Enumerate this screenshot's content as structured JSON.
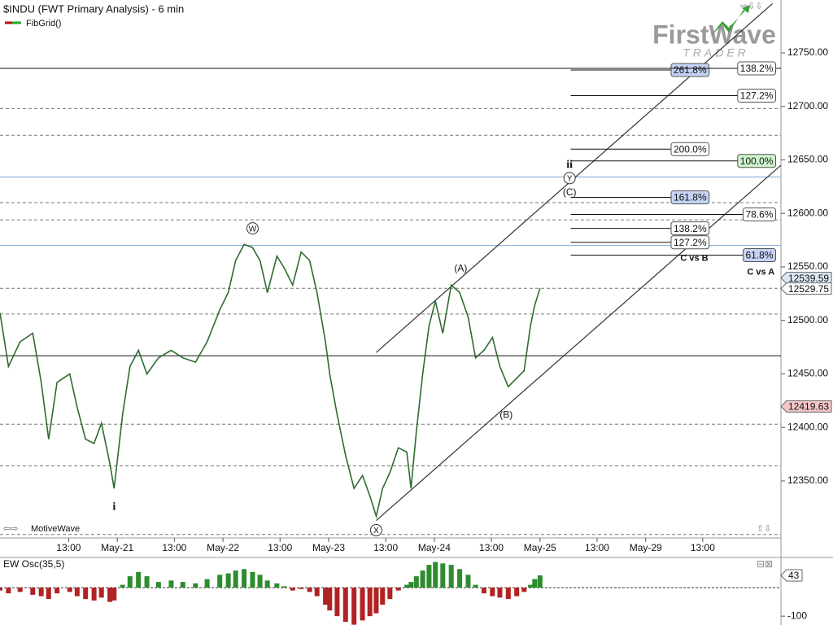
{
  "chart_data": [
    {
      "type": "line",
      "title": "$INDU (FWT Primary Analysis) - 6 min",
      "legend": "FibGrid()",
      "footer": "MotiveWave",
      "logo": {
        "text": "FirstWave",
        "tagline": "TRADER"
      },
      "color": "#2f6b2f",
      "xlim": [
        -1.11,
        6.28
      ],
      "ylim": [
        12297.5,
        12799.4
      ],
      "x": [
        -1.11,
        -1.03,
        -0.92,
        -0.8,
        -0.72,
        -0.65,
        -0.57,
        -0.45,
        -0.38,
        -0.3,
        -0.22,
        -0.15,
        -0.07,
        -0.03,
        0.05,
        0.12,
        0.2,
        0.28,
        0.39,
        0.51,
        0.62,
        0.74,
        0.85,
        0.97,
        1.05,
        1.12,
        1.2,
        1.28,
        1.35,
        1.42,
        1.51,
        1.58,
        1.66,
        1.74,
        1.82,
        1.89,
        1.97,
        2.01,
        2.08,
        2.16,
        2.24,
        2.32,
        2.39,
        2.45,
        2.51,
        2.58,
        2.66,
        2.74,
        2.78,
        2.83,
        2.89,
        2.95,
        3.01,
        3.08,
        3.16,
        3.24,
        3.32,
        3.39,
        3.47,
        3.55,
        3.62,
        3.7,
        3.78,
        3.85,
        3.91,
        3.95,
        4.0
      ],
      "values": [
        12507,
        12457,
        12480,
        12488,
        12442,
        12389,
        12442,
        12450,
        12419,
        12389,
        12385,
        12404,
        12366,
        12343,
        12412,
        12457,
        12472,
        12450,
        12465,
        12472,
        12465,
        12461,
        12480,
        12510,
        12526,
        12556,
        12571,
        12568,
        12556,
        12526,
        12560,
        12549,
        12533,
        12564,
        12556,
        12526,
        12480,
        12450,
        12412,
        12374,
        12343,
        12355,
        12336,
        12317,
        12343,
        12358,
        12381,
        12377,
        12343,
        12396,
        12450,
        12495,
        12518,
        12488,
        12533,
        12526,
        12503,
        12465,
        12472,
        12484,
        12457,
        12438,
        12446,
        12453,
        12495,
        12514,
        12530
      ],
      "xticks": [
        {
          "value": -0.46,
          "label": "13:00"
        },
        {
          "value": 0,
          "label": "May-21"
        },
        {
          "value": 0.54,
          "label": "13:00"
        },
        {
          "value": 1,
          "label": "May-22"
        },
        {
          "value": 1.54,
          "label": "13:00"
        },
        {
          "value": 2,
          "label": "May-23"
        },
        {
          "value": 2.54,
          "label": "13:00"
        },
        {
          "value": 3,
          "label": "May-24"
        },
        {
          "value": 3.54,
          "label": "13:00"
        },
        {
          "value": 4,
          "label": "May-25"
        },
        {
          "value": 4.54,
          "label": "13:00"
        },
        {
          "value": 5,
          "label": "May-29"
        },
        {
          "value": 5.54,
          "label": "13:00"
        }
      ],
      "yticks": [
        {
          "value": 12350,
          "label": "12350.00"
        },
        {
          "value": 12400,
          "label": "12400.00"
        },
        {
          "value": 12450,
          "label": "12450.00"
        },
        {
          "value": 12500,
          "label": "12500.00"
        },
        {
          "value": 12550,
          "label": "12550.00"
        },
        {
          "value": 12600,
          "label": "12600.00"
        },
        {
          "value": 12650,
          "label": "12650.00"
        },
        {
          "value": 12700,
          "label": "12700.00"
        },
        {
          "value": 12750,
          "label": "12750.00"
        }
      ],
      "levels": [
        {
          "value": 12735.5,
          "style": "solid"
        },
        {
          "value": 12698,
          "style": "dashed"
        },
        {
          "value": 12673,
          "style": "dashed"
        },
        {
          "value": 12634,
          "style": "blue"
        },
        {
          "value": 12610,
          "style": "dashed"
        },
        {
          "value": 12594,
          "style": "dashed"
        },
        {
          "value": 12570,
          "style": "blue"
        },
        {
          "value": 12530,
          "style": "dashed"
        },
        {
          "value": 12506,
          "style": "dashed"
        },
        {
          "value": 12467,
          "style": "solid"
        },
        {
          "value": 12403,
          "style": "dashed"
        },
        {
          "value": 12364,
          "style": "dashed"
        },
        {
          "value": 12300,
          "style": "dashed"
        }
      ],
      "fib_start": 4.29,
      "fib_labels": [
        {
          "text": "261.8%",
          "y": 12734,
          "x": 5.6,
          "fill": "#c5d3f5"
        },
        {
          "text": "138.2%",
          "y": 12735.5,
          "x": 6.23,
          "fill": "#ffffff"
        },
        {
          "text": "127.2%",
          "y": 12710,
          "x": 6.23,
          "fill": "#ffffff"
        },
        {
          "text": "200.0%",
          "y": 12660,
          "x": 5.6,
          "fill": "#ffffff"
        },
        {
          "text": "100.0%",
          "y": 12649,
          "x": 6.23,
          "fill": "#ccf5cc"
        },
        {
          "text": "161.8%",
          "y": 12615,
          "x": 5.6,
          "fill": "#c5d3f5"
        },
        {
          "text": "78.6%",
          "y": 12599,
          "x": 6.23,
          "fill": "#ffffff"
        },
        {
          "text": "138.2%",
          "y": 12586,
          "x": 5.6,
          "fill": "#ffffff"
        },
        {
          "text": "127.2%",
          "y": 12573,
          "x": 5.6,
          "fill": "#ffffff"
        },
        {
          "text": "61.8%",
          "y": 12561,
          "x": 6.23,
          "fill": "#c5d3f5"
        }
      ],
      "notes": [
        {
          "text": "C vs B",
          "x": 5.46,
          "y": 12558
        },
        {
          "text": "C vs A",
          "x": 6.09,
          "y": 12545
        }
      ],
      "waves": [
        {
          "text": "i",
          "x": -0.03,
          "y": 12326,
          "circled": false
        },
        {
          "text": "W",
          "x": 1.28,
          "y": 12586,
          "circled": true
        },
        {
          "text": "X",
          "x": 2.45,
          "y": 12304,
          "circled": true
        },
        {
          "text": "(A)",
          "x": 3.25,
          "y": 12549,
          "circled": false
        },
        {
          "text": "(B)",
          "x": 3.68,
          "y": 12412,
          "circled": false
        },
        {
          "text": "(C)",
          "x": 4.28,
          "y": 12620,
          "circled": false
        },
        {
          "text": "Y",
          "x": 4.28,
          "y": 12633,
          "circled": true
        },
        {
          "text": "ii",
          "x": 4.28,
          "y": 12646,
          "circled": false
        }
      ],
      "channels": [
        {
          "x": [
            2.45,
            6.2
          ],
          "y": [
            12470,
            12796
          ]
        },
        {
          "x": [
            2.45,
            6.28
          ],
          "y": [
            12313,
            12645
          ]
        }
      ],
      "price_labels": [
        {
          "value": 12539.59,
          "fill": "#dde8f5"
        },
        {
          "value": 12529.75,
          "fill": "#ffffff"
        },
        {
          "value": 12419.63,
          "fill": "#f5c6c6"
        }
      ]
    },
    {
      "type": "histogram-osc",
      "title": "EW Osc(35,5)",
      "colors": {
        "up": "#2e8b2e",
        "down": "#b22222"
      },
      "ylim": [
        -131,
        103
      ],
      "yticks": [
        -100
      ],
      "last": 43,
      "values": [
        -10,
        -20,
        -15,
        -25,
        -30,
        -40,
        -20,
        -15,
        -30,
        -40,
        -45,
        -35,
        -50,
        -45,
        10,
        40,
        55,
        40,
        20,
        25,
        20,
        15,
        30,
        45,
        50,
        60,
        65,
        55,
        45,
        25,
        15,
        5,
        -10,
        -5,
        -15,
        -30,
        -60,
        -80,
        -100,
        -120,
        -130,
        -115,
        -100,
        -90,
        -60,
        -40,
        -10,
        10,
        20,
        40,
        60,
        80,
        90,
        85,
        80,
        65,
        45,
        10,
        -20,
        -30,
        -35,
        -40,
        -30,
        -15,
        10,
        30,
        43
      ]
    }
  ]
}
